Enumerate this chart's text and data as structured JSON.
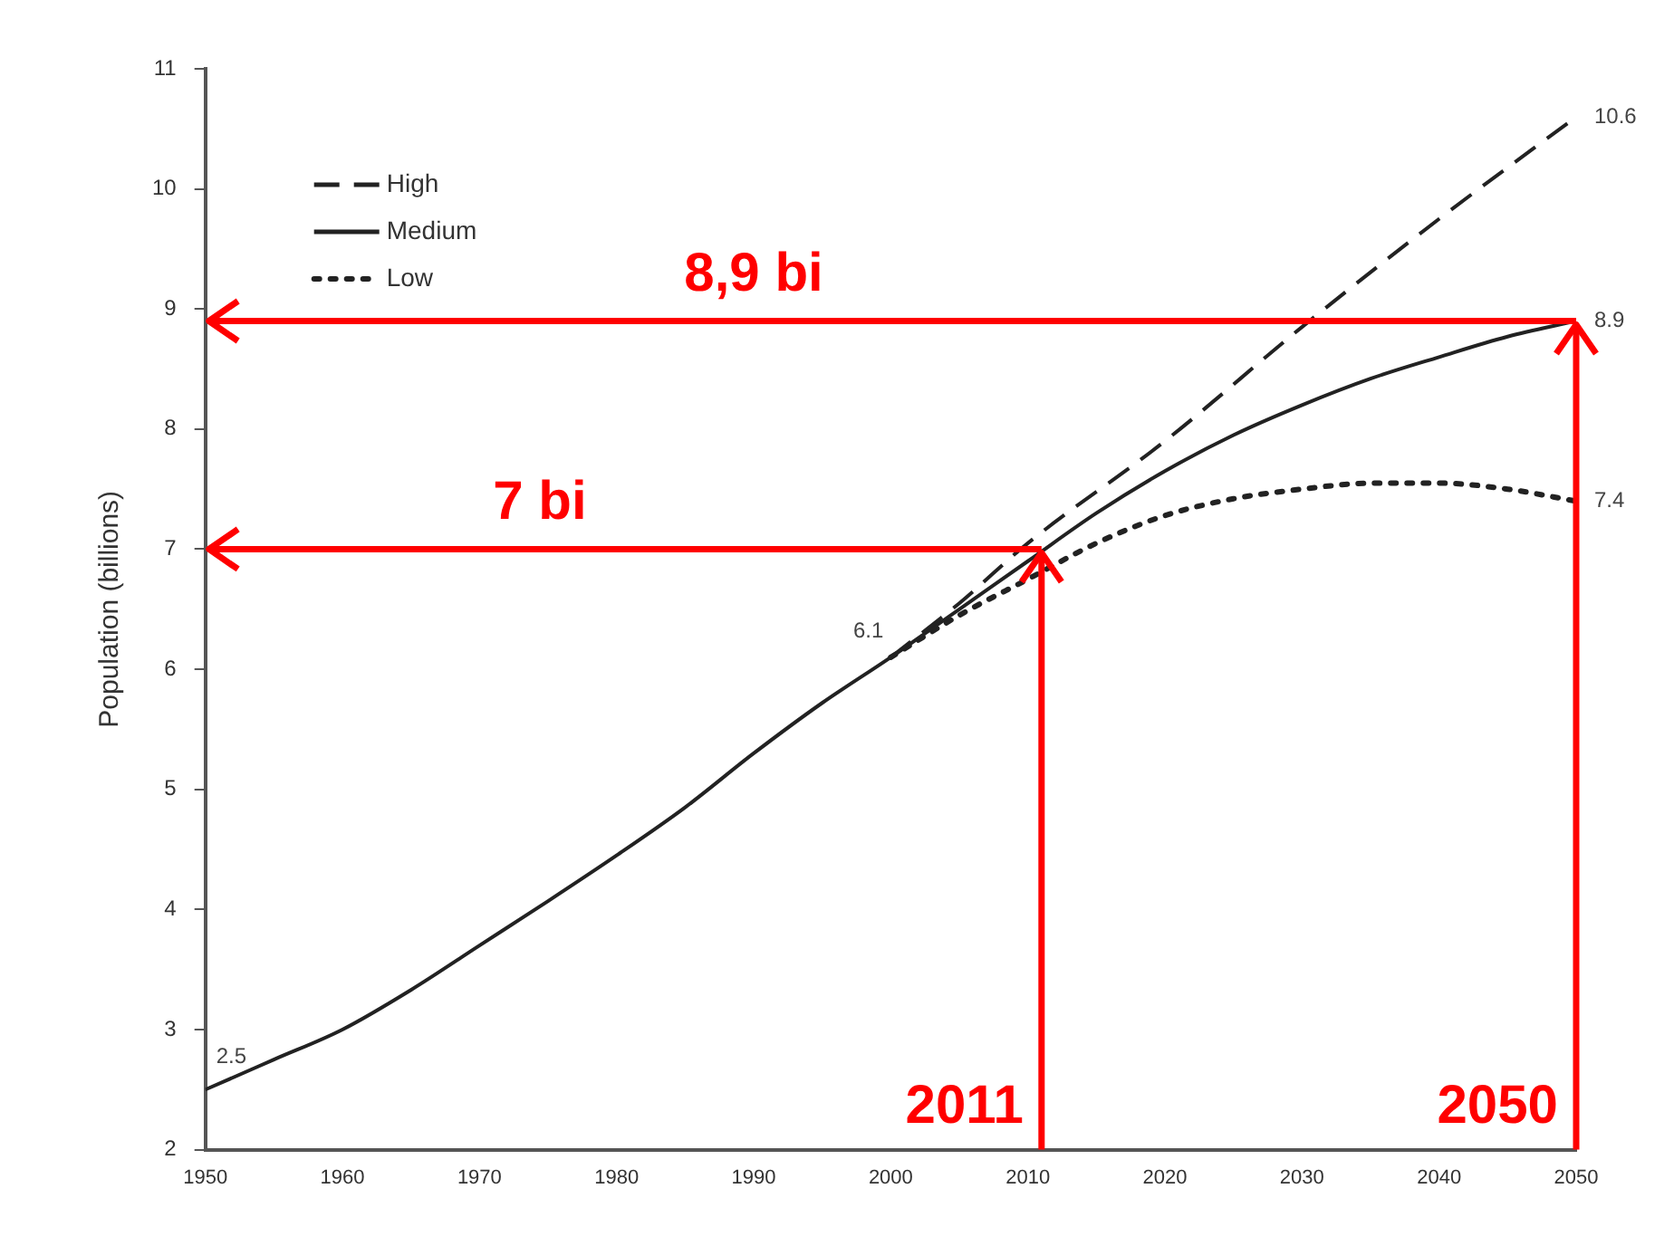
{
  "chart_data": {
    "type": "line",
    "ylabel": "Population (billions)",
    "xlim": [
      1950,
      2050
    ],
    "xticks": [
      1950,
      1960,
      1970,
      1980,
      1990,
      2000,
      2010,
      2020,
      2030,
      2040,
      2050
    ],
    "ylim": [
      2,
      11
    ],
    "yticks": [
      2,
      3,
      4,
      5,
      6,
      7,
      8,
      9,
      10,
      11
    ],
    "grid": false,
    "legend": "top left",
    "marker": "none",
    "series": [
      {
        "name": "High",
        "color": "#222222",
        "line_style": "dashed",
        "x": [
          2000,
          2005,
          2010,
          2020,
          2030,
          2040,
          2050
        ],
        "values": [
          6.1,
          6.55,
          7.05,
          7.9,
          8.85,
          9.75,
          10.6
        ],
        "value_labels": [
          null,
          null,
          null,
          null,
          null,
          null,
          "10.6"
        ]
      },
      {
        "name": "Medium",
        "color": "#222222",
        "line_style": "solid",
        "x": [
          1950,
          1955,
          1960,
          1965,
          1970,
          1975,
          1980,
          1985,
          1990,
          1995,
          2000,
          2005,
          2010,
          2015,
          2020,
          2025,
          2030,
          2035,
          2040,
          2045,
          2050
        ],
        "values": [
          2.5,
          2.75,
          3.0,
          3.33,
          3.7,
          4.07,
          4.45,
          4.85,
          5.3,
          5.72,
          6.1,
          6.5,
          6.9,
          7.3,
          7.65,
          7.95,
          8.2,
          8.42,
          8.6,
          8.77,
          8.9
        ],
        "value_labels": [
          "2.5",
          null,
          null,
          null,
          null,
          null,
          null,
          null,
          null,
          null,
          "6.1",
          null,
          null,
          null,
          null,
          null,
          null,
          null,
          null,
          null,
          "8.9"
        ]
      },
      {
        "name": "Low",
        "color": "#222222",
        "line_style": "dotted",
        "x": [
          2000,
          2005,
          2010,
          2015,
          2020,
          2025,
          2030,
          2035,
          2040,
          2045,
          2050
        ],
        "values": [
          6.1,
          6.45,
          6.75,
          7.05,
          7.28,
          7.42,
          7.5,
          7.55,
          7.55,
          7.5,
          7.4
        ],
        "value_labels": [
          null,
          null,
          null,
          null,
          null,
          null,
          null,
          null,
          null,
          null,
          "7.4"
        ]
      }
    ],
    "ref_lines": [
      {
        "axis": "y",
        "value": 8.9,
        "label": "8,9 bi",
        "color": "#ff0000"
      },
      {
        "axis": "x",
        "value": 2050,
        "label": "2050",
        "color": "#ff0000"
      },
      {
        "axis": "y",
        "value": 7,
        "label": "7 bi",
        "color": "#ff0000"
      },
      {
        "axis": "x",
        "value": 2011,
        "label": "2011",
        "color": "#ff0000"
      }
    ]
  }
}
